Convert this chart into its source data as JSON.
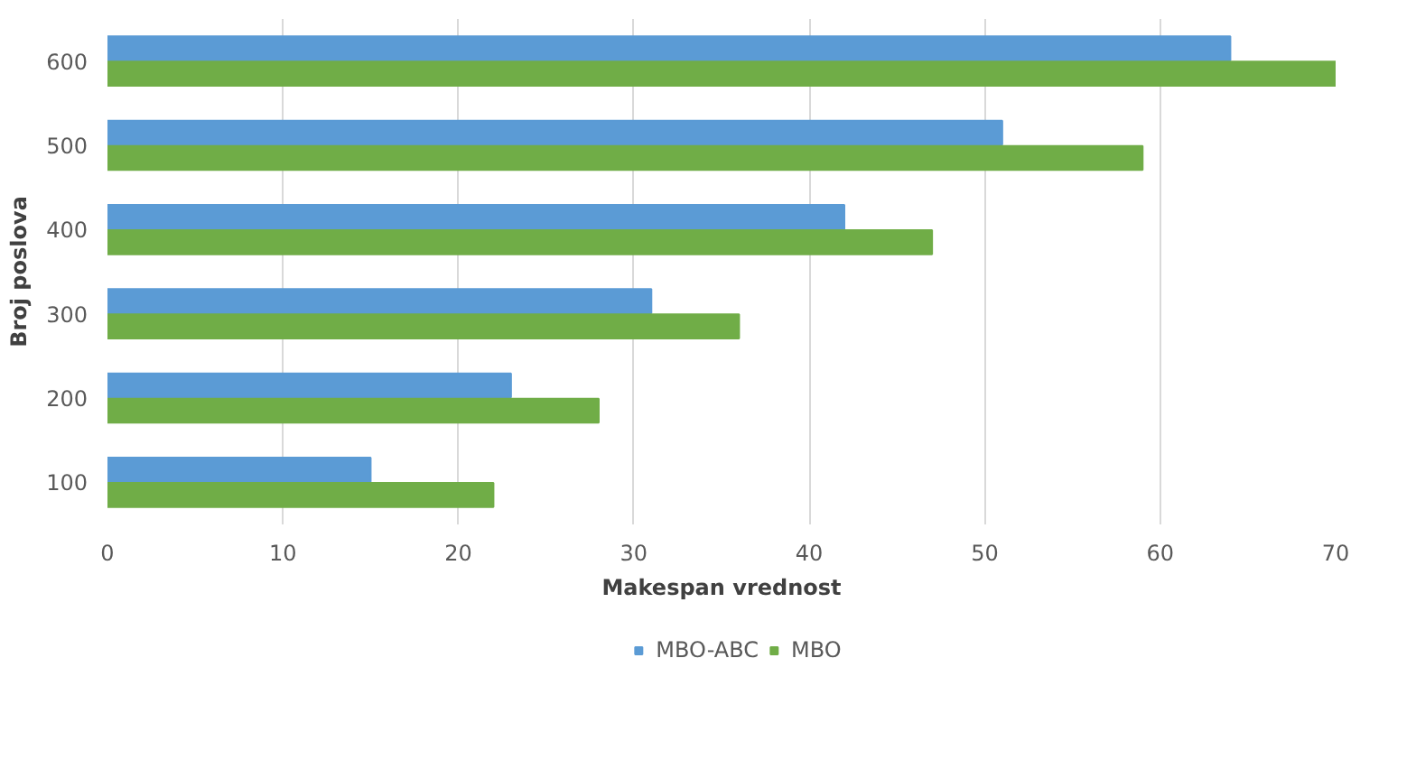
{
  "chart_data": {
    "type": "bar",
    "orientation": "horizontal",
    "xlabel": "Makespan vrednost",
    "ylabel": "Broj poslova",
    "categories": [
      "600",
      "500",
      "400",
      "300",
      "200",
      "100"
    ],
    "series": [
      {
        "name": "MBO-ABC",
        "color": "#5b9bd5",
        "values": [
          64,
          51,
          42,
          31,
          23,
          15
        ]
      },
      {
        "name": "MBO",
        "color": "#70ad47",
        "values": [
          70,
          59,
          47,
          36,
          28,
          22
        ]
      }
    ],
    "xlim": [
      0,
      70
    ],
    "xticks": [
      0,
      10,
      20,
      30,
      40,
      50,
      60,
      70
    ],
    "grid": "x",
    "legend": "bottom"
  }
}
